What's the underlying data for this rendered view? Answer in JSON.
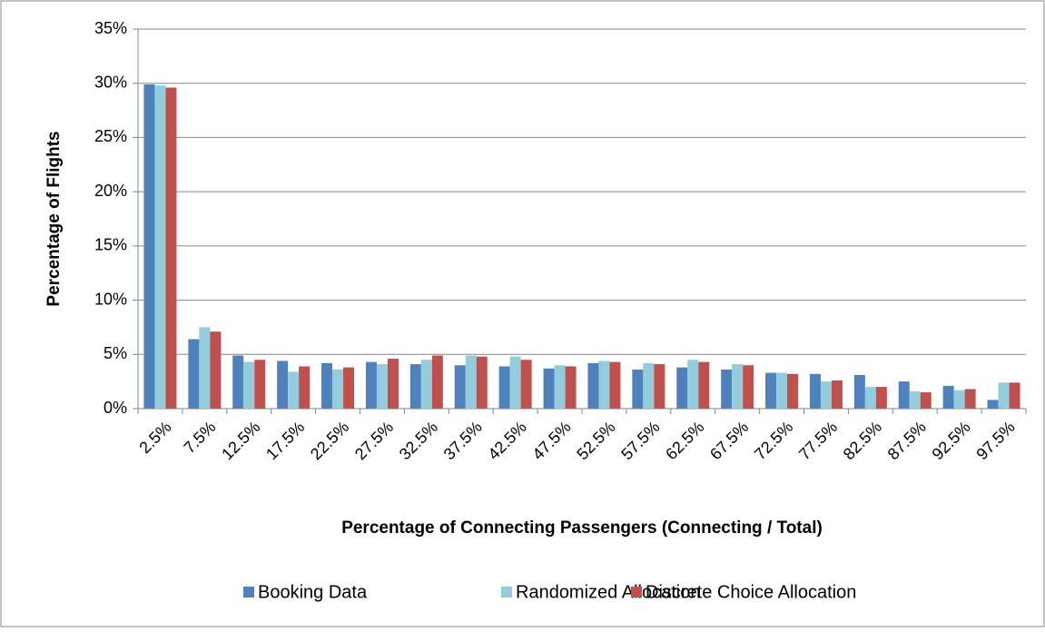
{
  "chart_data": {
    "type": "bar",
    "x_label": "Percentage of Connecting Passengers (Connecting / Total)",
    "y_label": "Percentage of Flights",
    "categories": [
      "2.5%",
      "7.5%",
      "12.5%",
      "17.5%",
      "22.5%",
      "27.5%",
      "32.5%",
      "37.5%",
      "42.5%",
      "47.5%",
      "52.5%",
      "57.5%",
      "62.5%",
      "67.5%",
      "72.5%",
      "77.5%",
      "82.5%",
      "87.5%",
      "92.5%",
      "97.5%"
    ],
    "series": [
      {
        "name": "Booking Data",
        "color": "#4f81bd",
        "values": [
          29.9,
          6.4,
          4.9,
          4.4,
          4.2,
          4.3,
          4.1,
          4.0,
          3.9,
          3.7,
          4.2,
          3.6,
          3.8,
          3.6,
          3.3,
          3.2,
          3.1,
          2.5,
          2.1,
          0.8
        ]
      },
      {
        "name": "Randomized Allocation",
        "color": "#93cddd",
        "values": [
          29.8,
          7.5,
          4.3,
          3.4,
          3.6,
          4.1,
          4.5,
          4.9,
          4.8,
          4.0,
          4.4,
          4.2,
          4.5,
          4.1,
          3.3,
          2.5,
          2.0,
          1.6,
          1.7,
          2.4
        ]
      },
      {
        "name": "Discrete Choice Allocation",
        "color": "#c0504d",
        "values": [
          29.6,
          7.1,
          4.5,
          3.9,
          3.8,
          4.6,
          4.9,
          4.8,
          4.5,
          3.9,
          4.3,
          4.1,
          4.3,
          4.0,
          3.2,
          2.6,
          2.0,
          1.5,
          1.8,
          2.4
        ]
      }
    ],
    "ylim": [
      0,
      35
    ],
    "yticks": [
      {
        "value": 0,
        "label": "0%"
      },
      {
        "value": 5,
        "label": "5%"
      },
      {
        "value": 10,
        "label": "10%"
      },
      {
        "value": 15,
        "label": "15%"
      },
      {
        "value": 20,
        "label": "20%"
      },
      {
        "value": 25,
        "label": "25%"
      },
      {
        "value": 30,
        "label": "30%"
      },
      {
        "value": 35,
        "label": "35%"
      }
    ],
    "grid": true,
    "legend": "bottom"
  }
}
